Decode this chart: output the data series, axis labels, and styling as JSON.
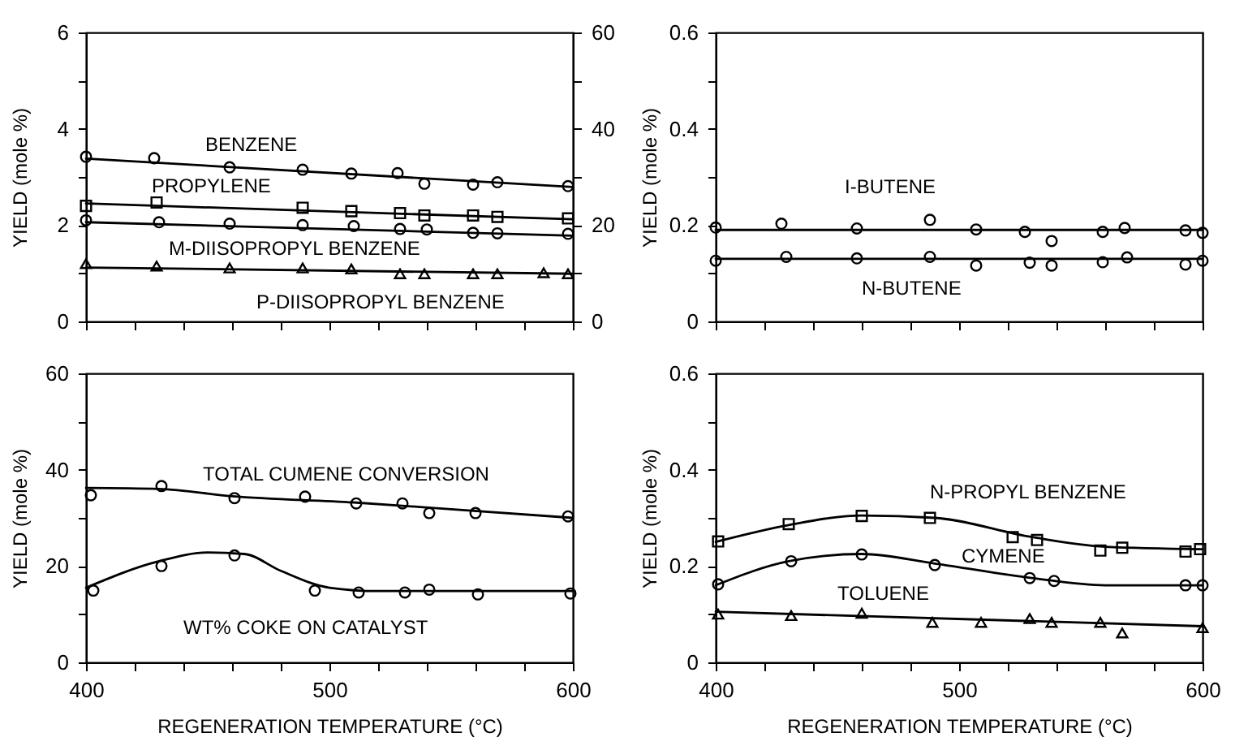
{
  "chart_data": [
    {
      "type": "scatter",
      "xlim": [
        400,
        600
      ],
      "xticks": [
        400,
        {
          "value": 420,
          "label": null
        },
        {
          "value": 440,
          "label": null
        },
        {
          "value": 460,
          "label": null
        },
        {
          "value": 480,
          "label": null
        },
        500,
        {
          "value": 520,
          "label": null
        },
        {
          "value": 540,
          "label": null
        },
        {
          "value": 560,
          "label": null
        },
        {
          "value": 580,
          "label": null
        },
        600
      ],
      "ylim": [
        0,
        6
      ],
      "yticks": [
        0,
        {
          "value": 1,
          "label": null
        },
        2,
        {
          "value": 3,
          "label": null
        },
        4,
        {
          "value": 5,
          "label": null
        },
        6
      ],
      "y2lim": [
        0,
        60
      ],
      "y2ticks": [
        0,
        {
          "value": 10,
          "label": null
        },
        20,
        {
          "value": 30,
          "label": null
        },
        40,
        {
          "value": 50,
          "label": null
        },
        60
      ],
      "ylabel": "YIELD (mole %)",
      "tick_labels": "y",
      "annotations": [
        "BENZENE",
        "PROPYLENE",
        "M-DIISOPROPYL BENZENE",
        "P-DIISOPROPYL BENZENE"
      ],
      "series": [
        {
          "type": "scatter",
          "marker": "circle",
          "color": "#000000",
          "x": [
            400,
            428,
            459,
            489,
            509,
            528,
            539,
            559,
            569,
            598
          ],
          "values": [
            3.42,
            3.39,
            3.2,
            3.15,
            3.07,
            3.08,
            2.86,
            2.84,
            2.89,
            2.81
          ]
        },
        {
          "type": "line",
          "marker": "none",
          "color": "#000000",
          "x": [
            400,
            600
          ],
          "values": [
            3.38,
            2.79
          ]
        },
        {
          "type": "scatter",
          "marker": "square",
          "color": "#000000",
          "x": [
            400,
            429,
            489,
            509,
            529,
            539,
            559,
            569,
            598
          ],
          "values": [
            2.4,
            2.47,
            2.36,
            2.29,
            2.25,
            2.2,
            2.2,
            2.17,
            2.14
          ]
        },
        {
          "type": "line",
          "marker": "none",
          "color": "#000000",
          "x": [
            400,
            600
          ],
          "values": [
            2.45,
            2.12
          ]
        },
        {
          "type": "scatter",
          "marker": "circle",
          "color": "#000000",
          "x": [
            400,
            430,
            459,
            489,
            510,
            529,
            540,
            559,
            569,
            598
          ],
          "values": [
            2.1,
            2.06,
            2.03,
            2.0,
            1.98,
            1.92,
            1.91,
            1.84,
            1.83,
            1.82
          ]
        },
        {
          "type": "line",
          "marker": "none",
          "color": "#000000",
          "x": [
            400,
            600
          ],
          "values": [
            2.06,
            1.78
          ]
        },
        {
          "type": "scatter",
          "marker": "triangle",
          "color": "#000000",
          "x": [
            400,
            429,
            459,
            489,
            509,
            529,
            539,
            559,
            569,
            588,
            598
          ],
          "values": [
            1.2,
            1.15,
            1.11,
            1.11,
            1.09,
            0.99,
            0.99,
            0.99,
            0.99,
            1.01,
            0.99
          ]
        },
        {
          "type": "line",
          "marker": "none",
          "color": "#000000",
          "x": [
            400,
            600
          ],
          "values": [
            1.12,
            0.99
          ]
        }
      ]
    },
    {
      "type": "scatter",
      "xlim": [
        400,
        600
      ],
      "xticks": [
        400,
        {
          "value": 420,
          "label": null
        },
        {
          "value": 440,
          "label": null
        },
        {
          "value": 460,
          "label": null
        },
        {
          "value": 480,
          "label": null
        },
        500,
        {
          "value": 520,
          "label": null
        },
        {
          "value": 540,
          "label": null
        },
        {
          "value": 560,
          "label": null
        },
        {
          "value": 580,
          "label": null
        },
        600
      ],
      "ylim": [
        0,
        0.6
      ],
      "yticks": [
        0,
        {
          "value": 0.1,
          "label": null
        },
        0.2,
        {
          "value": 0.3,
          "label": null
        },
        0.4,
        {
          "value": 0.5,
          "label": null
        },
        0.6
      ],
      "ylabel": "YIELD (mole %)",
      "tick_labels": "y",
      "annotations": [
        "I-BUTENE",
        "N-BUTENE"
      ],
      "series": [
        {
          "type": "scatter",
          "marker": "circle",
          "color": "#000000",
          "x": [
            400,
            427,
            458,
            488,
            507,
            527,
            538,
            559,
            568,
            593,
            600
          ],
          "values": [
            0.195,
            0.203,
            0.193,
            0.211,
            0.191,
            0.186,
            0.167,
            0.186,
            0.194,
            0.189,
            0.184
          ]
        },
        {
          "type": "line",
          "marker": "none",
          "color": "#000000",
          "x": [
            400,
            600
          ],
          "values": [
            0.19,
            0.19
          ]
        },
        {
          "type": "scatter",
          "marker": "circle",
          "color": "#000000",
          "x": [
            400,
            429,
            458,
            488,
            507,
            529,
            538,
            559,
            569,
            593,
            600
          ],
          "values": [
            0.126,
            0.134,
            0.131,
            0.134,
            0.116,
            0.122,
            0.116,
            0.123,
            0.133,
            0.118,
            0.126
          ]
        },
        {
          "type": "line",
          "marker": "none",
          "color": "#000000",
          "x": [
            400,
            600
          ],
          "values": [
            0.13,
            0.13
          ]
        }
      ]
    },
    {
      "type": "scatter",
      "xlim": [
        400,
        600
      ],
      "xticks": [
        400,
        {
          "value": 420,
          "label": null
        },
        {
          "value": 440,
          "label": null
        },
        {
          "value": 460,
          "label": null
        },
        {
          "value": 480,
          "label": null
        },
        500,
        {
          "value": 520,
          "label": null
        },
        {
          "value": 540,
          "label": null
        },
        {
          "value": 560,
          "label": null
        },
        {
          "value": 580,
          "label": null
        },
        600
      ],
      "ylim": [
        0,
        60
      ],
      "yticks": [
        0,
        {
          "value": 10,
          "label": null
        },
        20,
        {
          "value": 30,
          "label": null
        },
        40,
        {
          "value": 50,
          "label": null
        },
        60
      ],
      "ylabel": "YIELD (mole %)",
      "xlabel": "REGENERATION TEMPERATURE (°C)",
      "annotations": [
        "TOTAL CUMENE CONVERSION",
        "WT% COKE ON CATALYST"
      ],
      "series": [
        {
          "type": "scatter",
          "marker": "circle",
          "color": "#000000",
          "x": [
            402,
            431,
            461,
            490,
            511,
            530,
            541,
            560,
            598
          ],
          "values": [
            34.7,
            36.6,
            34.1,
            34.4,
            33.0,
            33.0,
            31.0,
            31.0,
            30.3
          ]
        },
        {
          "type": "line",
          "marker": "none",
          "color": "#000000",
          "x": [
            400,
            430,
            460,
            510,
            550,
            600
          ],
          "values": [
            36.2,
            36,
            34.5,
            33.2,
            31.8,
            30
          ]
        },
        {
          "type": "scatter",
          "marker": "circle",
          "color": "#000000",
          "x": [
            403,
            431,
            461,
            494,
            512,
            531,
            541,
            561,
            599
          ],
          "values": [
            14.9,
            20.0,
            22.2,
            14.9,
            14.5,
            14.5,
            15.1,
            14.1,
            14.3
          ]
        },
        {
          "type": "line",
          "marker": "none",
          "color": "#000000",
          "x": [
            400,
            430,
            450,
            465,
            480,
            500,
            520,
            600
          ],
          "values": [
            15.5,
            21,
            22.8,
            22.5,
            19,
            15.5,
            14.8,
            14.8
          ]
        }
      ]
    },
    {
      "type": "scatter",
      "xlim": [
        400,
        600
      ],
      "xticks": [
        400,
        {
          "value": 420,
          "label": null
        },
        {
          "value": 440,
          "label": null
        },
        {
          "value": 460,
          "label": null
        },
        {
          "value": 480,
          "label": null
        },
        500,
        {
          "value": 520,
          "label": null
        },
        {
          "value": 540,
          "label": null
        },
        {
          "value": 560,
          "label": null
        },
        {
          "value": 580,
          "label": null
        },
        600
      ],
      "ylim": [
        0,
        0.6
      ],
      "yticks": [
        0,
        {
          "value": 0.1,
          "label": null
        },
        0.2,
        {
          "value": 0.3,
          "label": null
        },
        0.4,
        {
          "value": 0.5,
          "label": null
        },
        0.6
      ],
      "ylabel": "YIELD (mole %)",
      "xlabel": "REGENERATION TEMPERATURE (°C)",
      "annotations": [
        "N-PROPYL BENZENE",
        "CYMENE",
        "TOLUENE"
      ],
      "series": [
        {
          "type": "scatter",
          "marker": "square",
          "color": "#000000",
          "x": [
            401,
            430,
            460,
            488,
            522,
            532,
            558,
            567,
            593,
            599
          ],
          "values": [
            0.251,
            0.287,
            0.304,
            0.3,
            0.26,
            0.254,
            0.232,
            0.238,
            0.23,
            0.235
          ]
        },
        {
          "type": "line",
          "marker": "none",
          "color": "#000000",
          "x": [
            400,
            430,
            460,
            490,
            530,
            560,
            600
          ],
          "values": [
            0.25,
            0.285,
            0.305,
            0.3,
            0.26,
            0.24,
            0.235
          ]
        },
        {
          "type": "scatter",
          "marker": "circle",
          "color": "#000000",
          "x": [
            401,
            431,
            460,
            490,
            529,
            539,
            593,
            600
          ],
          "values": [
            0.162,
            0.21,
            0.224,
            0.202,
            0.175,
            0.169,
            0.16,
            0.16
          ]
        },
        {
          "type": "line",
          "marker": "none",
          "color": "#000000",
          "x": [
            400,
            430,
            460,
            490,
            530,
            560,
            600
          ],
          "values": [
            0.16,
            0.21,
            0.225,
            0.205,
            0.175,
            0.16,
            0.16
          ]
        },
        {
          "type": "scatter",
          "marker": "triangle",
          "color": "#000000",
          "x": [
            401,
            431,
            460,
            489,
            509,
            529,
            538,
            558,
            567,
            600
          ],
          "values": [
            0.1,
            0.097,
            0.102,
            0.083,
            0.083,
            0.091,
            0.083,
            0.083,
            0.061,
            0.072
          ]
        },
        {
          "type": "line",
          "marker": "none",
          "color": "#000000",
          "x": [
            400,
            600
          ],
          "values": [
            0.105,
            0.075
          ]
        }
      ]
    }
  ]
}
